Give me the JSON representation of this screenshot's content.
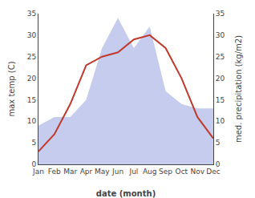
{
  "chart_data": {
    "type": "line",
    "categories": [
      "Jan",
      "Feb",
      "Mar",
      "Apr",
      "May",
      "Jun",
      "Jul",
      "Aug",
      "Sep",
      "Oct",
      "Nov",
      "Dec"
    ],
    "series": [
      {
        "type": "area",
        "color": "#c5ccee",
        "axis": "y2",
        "values": [
          9,
          11,
          11,
          15,
          27,
          34,
          27,
          32,
          17,
          14,
          13,
          13
        ]
      },
      {
        "type": "line",
        "color": "#c0392b",
        "values": [
          3,
          7,
          14,
          23,
          25,
          26,
          29,
          30,
          27,
          20,
          11,
          6
        ]
      }
    ],
    "xlabel": "date (month)",
    "ylabel": "max temp (C)",
    "y2label": "med. precipitation (kg/m2)",
    "ylim": [
      0,
      35
    ],
    "yticks": [
      0,
      5,
      10,
      15,
      20,
      25,
      30,
      35
    ],
    "y2lim": [
      0,
      35
    ],
    "y2ticks": [
      0,
      5,
      10,
      15,
      20,
      25,
      30,
      35
    ],
    "grid": false
  }
}
